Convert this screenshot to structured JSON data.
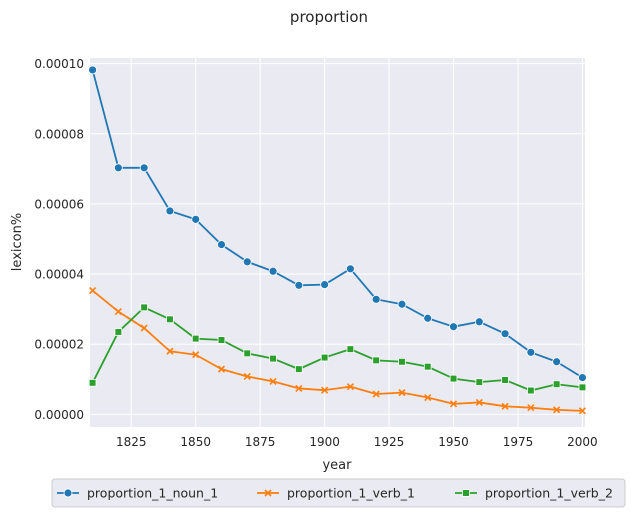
{
  "chart_data": {
    "type": "line",
    "title": "proportion",
    "xlabel": "year",
    "ylabel": "lexicon%",
    "xlim": [
      1809,
      2001
    ],
    "ylim": [
      -3.6e-06,
      0.0001016
    ],
    "x_ticks": [
      1825,
      1850,
      1875,
      1900,
      1925,
      1950,
      1975,
      2000
    ],
    "x_tick_labels": [
      "1825",
      "1850",
      "1875",
      "1900",
      "1925",
      "1950",
      "1975",
      "2000"
    ],
    "y_ticks": [
      0,
      2e-05,
      4e-05,
      6e-05,
      8e-05,
      0.0001
    ],
    "y_tick_labels": [
      "0.00000",
      "0.00002",
      "0.00004",
      "0.00006",
      "0.00008",
      "0.00010"
    ],
    "grid": true,
    "legend_position": "bottom-center",
    "x": [
      1810,
      1820,
      1830,
      1840,
      1850,
      1860,
      1870,
      1880,
      1890,
      1900,
      1910,
      1920,
      1930,
      1940,
      1950,
      1960,
      1970,
      1980,
      1990,
      2000
    ],
    "series": [
      {
        "name": "proportion_1_noun_1",
        "color": "#1f77b4",
        "marker": "circle",
        "values": [
          9.82e-05,
          7.03e-05,
          7.03e-05,
          5.8e-05,
          5.56e-05,
          4.84e-05,
          4.35e-05,
          4.08e-05,
          3.68e-05,
          3.7e-05,
          4.15e-05,
          3.28e-05,
          3.14e-05,
          2.74e-05,
          2.5e-05,
          2.64e-05,
          2.3e-05,
          1.77e-05,
          1.5e-05,
          1.05e-05
        ]
      },
      {
        "name": "proportion_1_verb_1",
        "color": "#ff7f0e",
        "marker": "x",
        "values": [
          3.53e-05,
          2.93e-05,
          2.46e-05,
          1.8e-05,
          1.7e-05,
          1.29e-05,
          1.08e-05,
          9.4e-06,
          7.4e-06,
          6.9e-06,
          7.9e-06,
          5.8e-06,
          6.2e-06,
          4.8e-06,
          3e-06,
          3.4e-06,
          2.3e-06,
          1.9e-06,
          1.3e-06,
          1e-06
        ]
      },
      {
        "name": "proportion_1_verb_2",
        "color": "#2ca02c",
        "marker": "square",
        "values": [
          9e-06,
          2.35e-05,
          3.05e-05,
          2.71e-05,
          2.16e-05,
          2.12e-05,
          1.74e-05,
          1.59e-05,
          1.29e-05,
          1.62e-05,
          1.86e-05,
          1.54e-05,
          1.5e-05,
          1.36e-05,
          1.02e-05,
          9.2e-06,
          9.8e-06,
          6.8e-06,
          8.6e-06,
          7.7e-06
        ]
      }
    ]
  }
}
